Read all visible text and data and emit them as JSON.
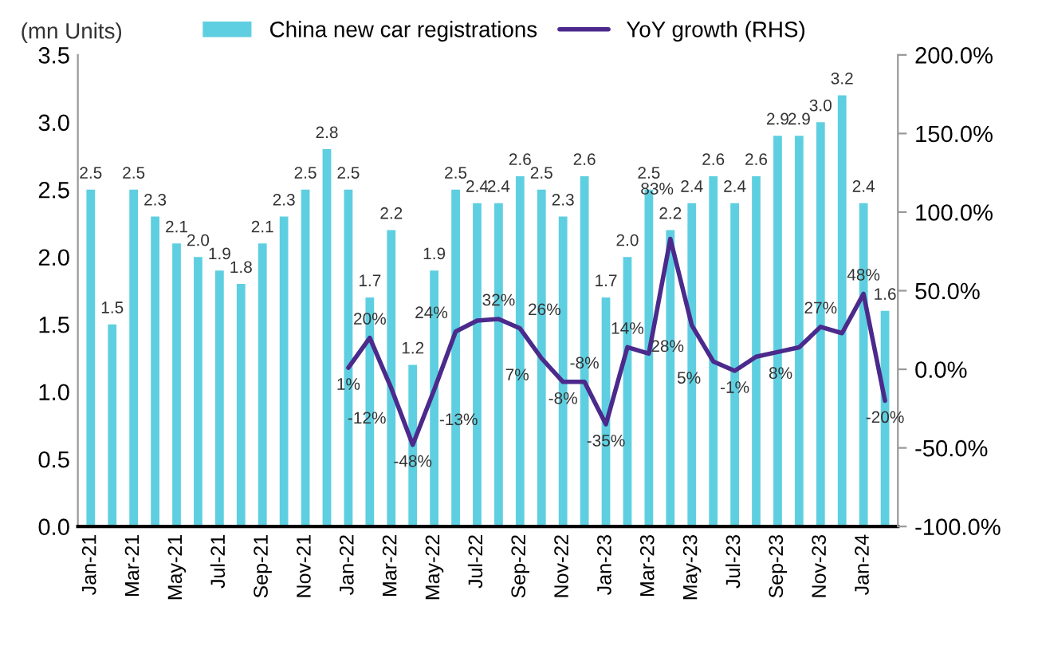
{
  "chart_data": {
    "type": "bar",
    "ylabel": "(mn Units)",
    "categories": [
      "Jan-21",
      null,
      "Mar-21",
      null,
      "May-21",
      null,
      "Jul-21",
      null,
      "Sep-21",
      null,
      "Nov-21",
      null,
      "Jan-22",
      null,
      "Mar-22",
      null,
      "May-22",
      null,
      "Jul-22",
      null,
      "Sep-22",
      null,
      "Nov-22",
      null,
      "Jan-23",
      null,
      "Mar-23",
      null,
      "May-23",
      null,
      "Jul-23",
      null,
      "Sep-23",
      null,
      "Nov-23",
      null,
      "Jan-24",
      null
    ],
    "ylim": [
      0,
      3.5
    ],
    "yticks": [
      {
        "value": 0,
        "label": "0.0"
      },
      {
        "value": 0.5,
        "label": "0.5"
      },
      {
        "value": 1,
        "label": "1.0"
      },
      {
        "value": 1.5,
        "label": "1.5"
      },
      {
        "value": 2,
        "label": "2.0"
      },
      {
        "value": 2.5,
        "label": "2.5"
      },
      {
        "value": 3,
        "label": "3.0"
      },
      {
        "value": 3.5,
        "label": "3.5"
      }
    ],
    "y2lim": [
      -100,
      200
    ],
    "y2ticks": [
      {
        "value": -100,
        "label": "-100.0%"
      },
      {
        "value": -50,
        "label": "-50.0%"
      },
      {
        "value": 0,
        "label": "0.0%"
      },
      {
        "value": 50,
        "label": "50.0%"
      },
      {
        "value": 100,
        "label": "100.0%"
      },
      {
        "value": 150,
        "label": "150.0%"
      },
      {
        "value": 200,
        "label": "200.0%"
      }
    ],
    "legend": "top",
    "grid": false,
    "series": [
      {
        "name": "China new car registrations",
        "color": "#5ecfe0",
        "values": [
          2.5,
          1.5,
          2.5,
          2.3,
          2.1,
          2.0,
          1.9,
          1.8,
          2.1,
          2.3,
          2.5,
          2.8,
          2.5,
          1.7,
          2.2,
          1.2,
          1.9,
          2.5,
          2.4,
          2.4,
          2.6,
          2.5,
          2.3,
          2.6,
          1.7,
          2.0,
          2.5,
          2.2,
          2.4,
          2.6,
          2.4,
          2.6,
          2.9,
          2.9,
          3.0,
          3.2,
          2.4,
          1.6
        ],
        "value_labels": [
          "2.5",
          "1.5",
          "2.5",
          "2.3",
          "2.1",
          "2.0",
          "1.9",
          "1.8",
          "2.1",
          "2.3",
          "2.5",
          "2.8",
          "2.5",
          "1.7",
          "2.2",
          "1.2",
          "1.9",
          "2.5",
          "2.4",
          "2.4",
          "2.6",
          "2.5",
          "2.3",
          "2.6",
          "1.7",
          "2.0",
          "2.5",
          "2.2",
          "2.4",
          "2.6",
          "2.4",
          "2.6",
          "2.9",
          "2.9",
          "3.0",
          "3.2",
          "2.4",
          "1.6"
        ]
      },
      {
        "name": "YoY growth (RHS)",
        "type": "line",
        "axis": "y2",
        "color": "#4b2a8c",
        "values": [
          null,
          null,
          null,
          null,
          null,
          null,
          null,
          null,
          null,
          null,
          null,
          null,
          1,
          20,
          -12,
          -48,
          -13,
          24,
          31,
          32,
          26,
          7,
          -8,
          -8,
          -35,
          14,
          10,
          83,
          28,
          5,
          -1,
          8,
          11,
          14,
          27,
          23,
          48,
          -20
        ],
        "value_labels": [
          null,
          null,
          null,
          null,
          null,
          null,
          null,
          null,
          null,
          null,
          null,
          null,
          "1%",
          "20%",
          "-12%",
          "-48%",
          "-13%",
          "24%",
          null,
          "32%",
          "26%",
          "7%",
          "-8%",
          "-8%",
          "-35%",
          "14%",
          null,
          "83%",
          "28%",
          "5%",
          "-1%",
          "8%",
          null,
          null,
          "27%",
          null,
          "48%",
          "-20%"
        ]
      }
    ]
  }
}
